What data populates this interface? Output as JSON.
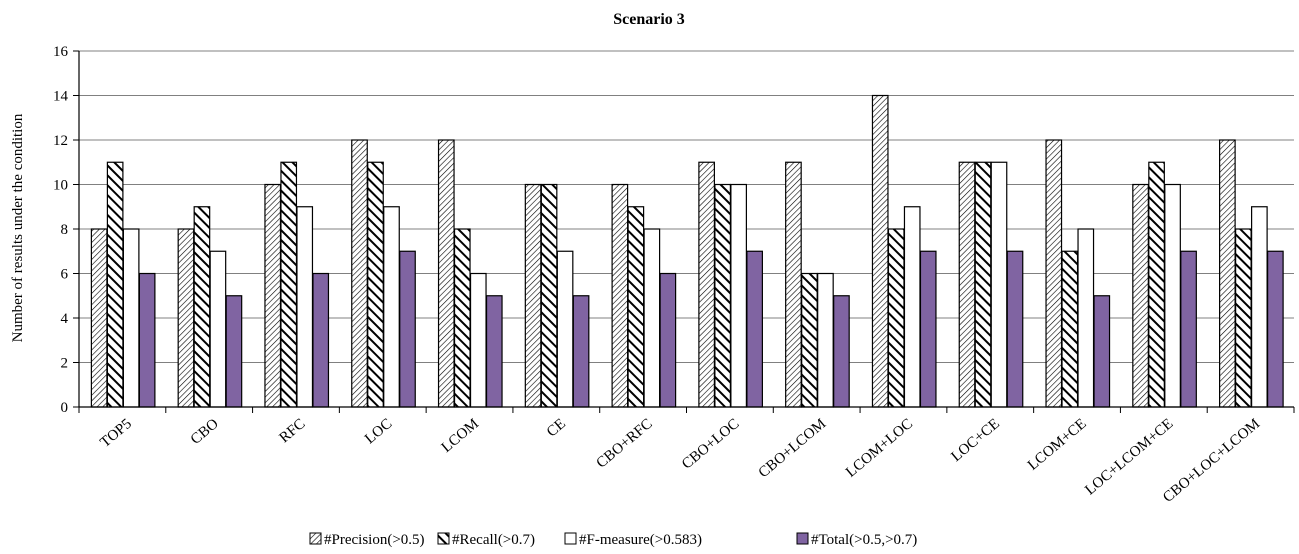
{
  "chart_data": {
    "type": "bar",
    "title": "Scenario 3",
    "xlabel": "",
    "ylabel": "Number of results under the condition",
    "ylim": [
      0,
      16
    ],
    "yticks": [
      0,
      2,
      4,
      6,
      8,
      10,
      12,
      14,
      16
    ],
    "grid": true,
    "legend_position": "bottom",
    "categories": [
      "TOP5",
      "CBO",
      "RFC",
      "LOC",
      "LCOM",
      "CE",
      "CBO+RFC",
      "CBO+LOC",
      "CBO+LCOM",
      "LCOM+LOC",
      "LOC+CE",
      "LCOM+CE",
      "LOC+LCOM+CE",
      "CBO+LOC+LCOM"
    ],
    "series": [
      {
        "name": "#Precision(>0.5)",
        "pattern": "thin-hatch",
        "values": [
          8,
          8,
          10,
          12,
          12,
          10,
          10,
          11,
          11,
          14,
          11,
          12,
          10,
          12
        ]
      },
      {
        "name": "#Recall(>0.7)",
        "pattern": "thick-hatch",
        "values": [
          11,
          9,
          11,
          11,
          8,
          10,
          9,
          10,
          6,
          8,
          11,
          7,
          11,
          8
        ]
      },
      {
        "name": "#F-measure(>0.583)",
        "pattern": "white",
        "values": [
          8,
          7,
          9,
          9,
          6,
          7,
          8,
          10,
          6,
          9,
          11,
          8,
          10,
          9
        ]
      },
      {
        "name": "#Total(>0.5,>0.7)",
        "pattern": "solid",
        "color": "#8064A2",
        "values": [
          6,
          5,
          6,
          7,
          5,
          5,
          6,
          7,
          5,
          7,
          7,
          5,
          7,
          7
        ]
      }
    ]
  }
}
